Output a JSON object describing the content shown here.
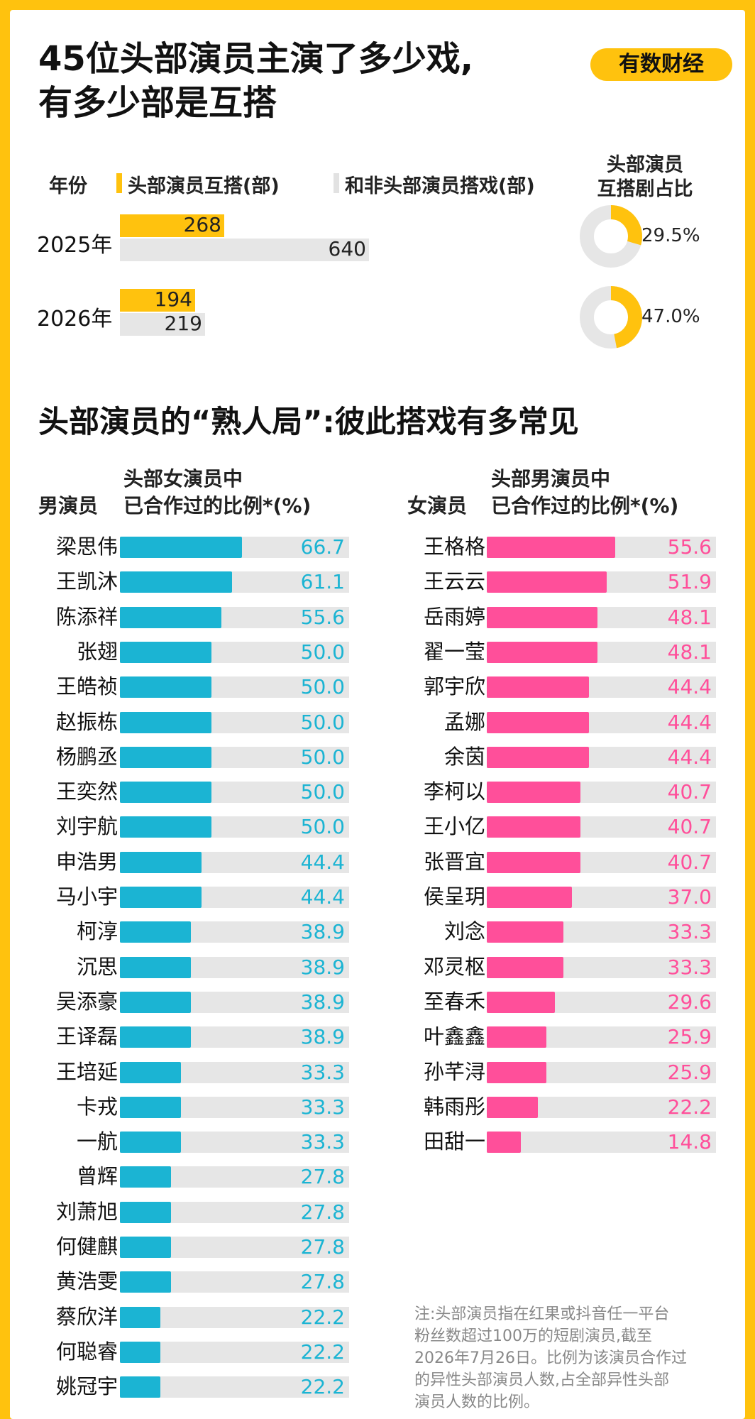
{
  "header": {
    "title_line1": "45位头部演员主演了多少戏,",
    "title_line2": "有多少部是互搭",
    "brand": "有数财经"
  },
  "chart_data": [
    {
      "type": "bar",
      "orientation": "horizontal",
      "legend": {
        "year_label": "年份",
        "series1_label": "头部演员互搭(部)",
        "series2_label": "和非头部演员搭戏(部)",
        "ratio_label_line1": "头部演员",
        "ratio_label_line2": "互搭剧占比"
      },
      "categories": [
        "2025年",
        "2026年"
      ],
      "series": [
        {
          "name": "头部演员互搭(部)",
          "values": [
            268,
            194
          ],
          "color": "#FFC20E"
        },
        {
          "name": "和非头部演员搭戏(部)",
          "values": [
            640,
            219
          ],
          "color": "#E6E6E6"
        }
      ],
      "ratio": {
        "values": [
          29.5,
          47.0
        ],
        "labels": [
          "29.5%",
          "47.0%"
        ],
        "color": "#FFC20E",
        "track_color": "#E6E6E6"
      }
    },
    {
      "type": "bar",
      "orientation": "horizontal",
      "section_title": "头部演员的“熟人局”:彼此搭戏有多常见",
      "name_header": "男演员",
      "value_header_line1": "头部女演员中",
      "value_header_line2": "已合作过的比例*(%)",
      "color": "#1BB4D3",
      "xlim": [
        0,
        100
      ],
      "categories": [
        "梁思伟",
        "王凯沐",
        "陈添祥",
        "张翅",
        "王皓祯",
        "赵振栋",
        "杨鹏丞",
        "王奕然",
        "刘宇航",
        "申浩男",
        "马小宇",
        "柯淳",
        "沉思",
        "吴添豪",
        "王译磊",
        "王培延",
        "卡戎",
        "一航",
        "曾辉",
        "刘萧旭",
        "何健麒",
        "黄浩雯",
        "蔡欣洋",
        "何聪睿",
        "姚冠宇"
      ],
      "values": [
        66.7,
        61.1,
        55.6,
        50.0,
        50.0,
        50.0,
        50.0,
        50.0,
        50.0,
        44.4,
        44.4,
        38.9,
        38.9,
        38.9,
        38.9,
        33.3,
        33.3,
        33.3,
        27.8,
        27.8,
        27.8,
        27.8,
        22.2,
        22.2,
        22.2
      ],
      "labels": [
        "66.7",
        "61.1",
        "55.6",
        "50.0",
        "50.0",
        "50.0",
        "50.0",
        "50.0",
        "50.0",
        "44.4",
        "44.4",
        "38.9",
        "38.9",
        "38.9",
        "38.9",
        "33.3",
        "33.3",
        "33.3",
        "27.8",
        "27.8",
        "27.8",
        "27.8",
        "22.2",
        "22.2",
        "22.2"
      ]
    },
    {
      "type": "bar",
      "orientation": "horizontal",
      "name_header": "女演员",
      "value_header_line1": "头部男演员中",
      "value_header_line2": "已合作过的比例*(%)",
      "color": "#FF4F9A",
      "xlim": [
        0,
        100
      ],
      "categories": [
        "王格格",
        "王云云",
        "岳雨婷",
        "翟一莹",
        "郭宇欣",
        "孟娜",
        "余茵",
        "李柯以",
        "王小亿",
        "张晋宜",
        "侯呈玥",
        "刘念",
        "邓灵枢",
        "至春禾",
        "叶鑫鑫",
        "孙芊浔",
        "韩雨彤",
        "田甜一"
      ],
      "values": [
        55.6,
        51.9,
        48.1,
        48.1,
        44.4,
        44.4,
        44.4,
        40.7,
        40.7,
        40.7,
        37.0,
        33.3,
        33.3,
        29.6,
        25.9,
        25.9,
        22.2,
        14.8
      ],
      "labels": [
        "55.6",
        "51.9",
        "48.1",
        "48.1",
        "44.4",
        "44.4",
        "44.4",
        "40.7",
        "40.7",
        "40.7",
        "37.0",
        "33.3",
        "33.3",
        "29.6",
        "25.9",
        "25.9",
        "22.2",
        "14.8"
      ]
    }
  ],
  "note": {
    "lines": [
      "注:头部演员指在红果或抖音任一平台",
      "粉丝数超过100万的短剧演员,截至",
      "2026年7月26日。比例为该演员合作过",
      "的异性头部演员人数,占全部异性头部",
      "演员人数的比例。"
    ]
  }
}
